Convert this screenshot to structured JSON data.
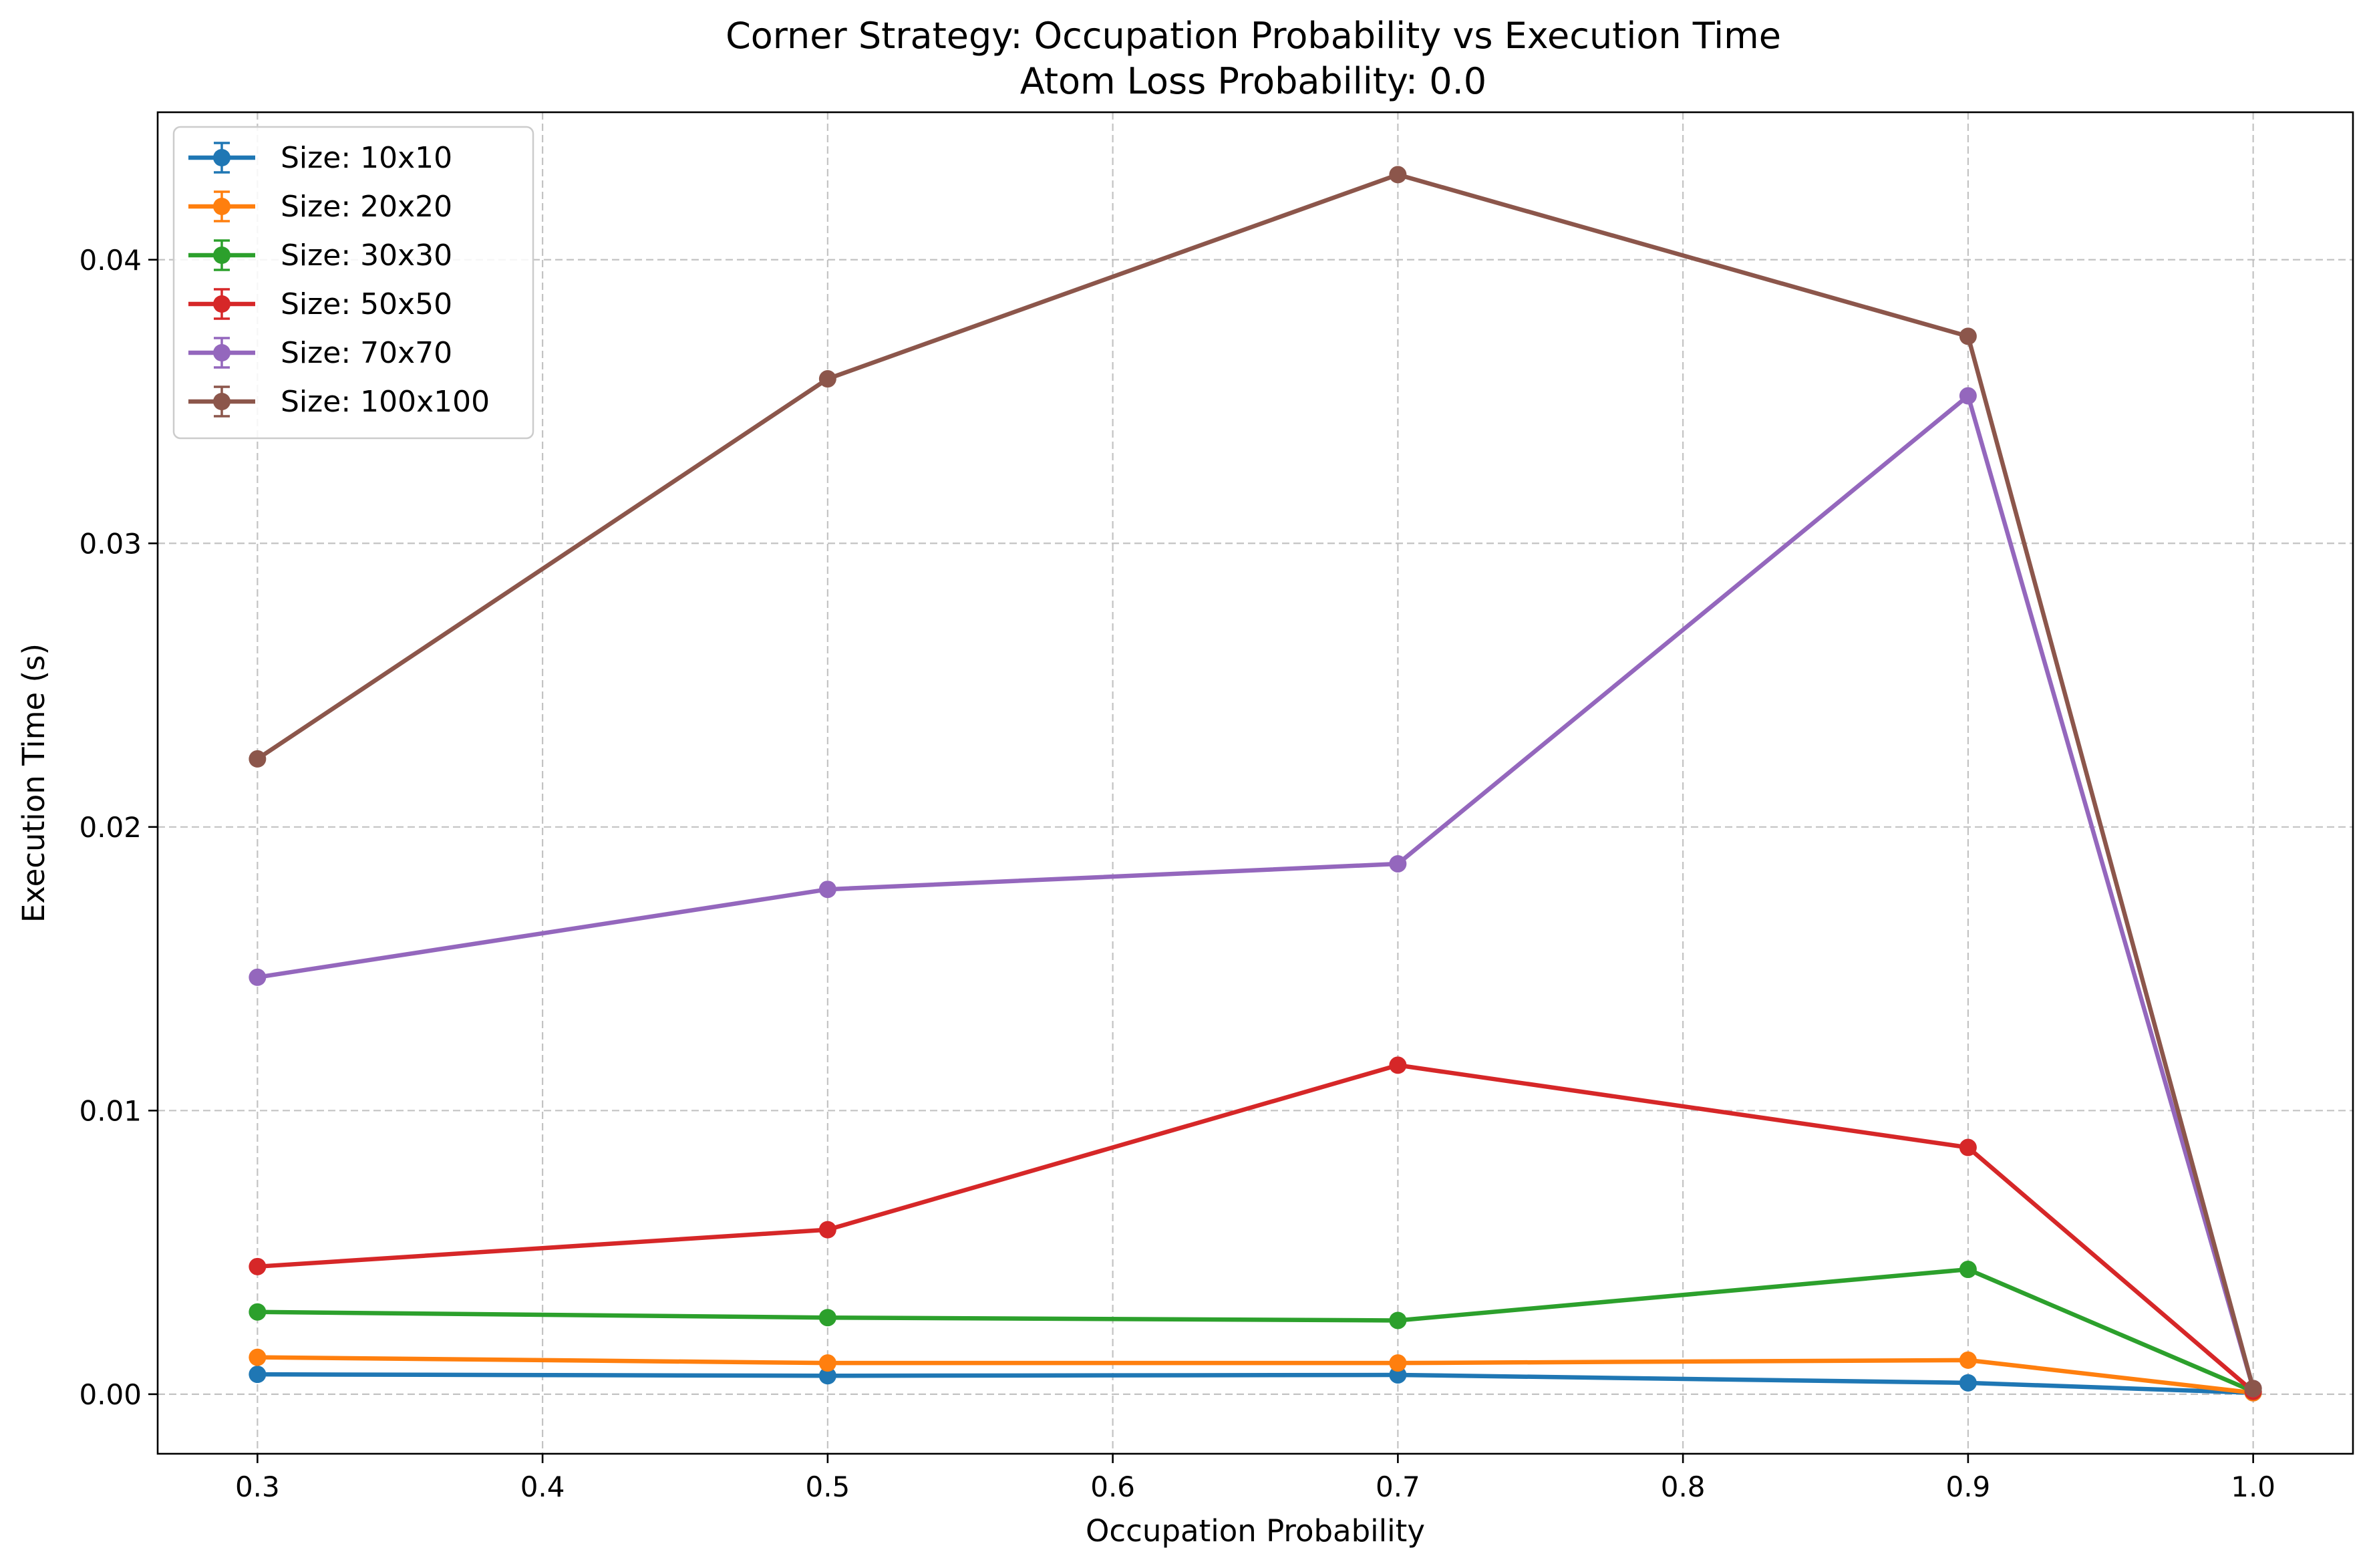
{
  "chart_data": {
    "type": "line",
    "title": "Corner Strategy: Occupation Probability vs Execution Time",
    "subtitle": "Atom Loss Probability: 0.0",
    "xlabel": "Occupation Probability",
    "ylabel": "Execution Time (s)",
    "xlim": [
      0.265,
      1.035
    ],
    "ylim": [
      -0.0021,
      0.0452
    ],
    "xticks": [
      0.3,
      0.4,
      0.5,
      0.6,
      0.7,
      0.8,
      0.9,
      1.0
    ],
    "xtick_labels": [
      "0.3",
      "0.4",
      "0.5",
      "0.6",
      "0.7",
      "0.8",
      "0.9",
      "1.0"
    ],
    "yticks": [
      0.0,
      0.01,
      0.02,
      0.03,
      0.04
    ],
    "ytick_labels": [
      "0.00",
      "0.01",
      "0.02",
      "0.03",
      "0.04"
    ],
    "grid": true,
    "legend_position": "top-left",
    "x": [
      0.3,
      0.5,
      0.7,
      0.9,
      1.0
    ],
    "series": [
      {
        "name": "Size: 10x10",
        "color": "#1f77b4",
        "values": [
          0.0007,
          0.00065,
          0.00068,
          0.0004,
          5e-05
        ]
      },
      {
        "name": "Size: 20x20",
        "color": "#ff7f0e",
        "values": [
          0.0013,
          0.0011,
          0.0011,
          0.0012,
          5e-05
        ]
      },
      {
        "name": "Size: 30x30",
        "color": "#2ca02c",
        "values": [
          0.0029,
          0.0027,
          0.0026,
          0.0044,
          0.0001
        ]
      },
      {
        "name": "Size: 50x50",
        "color": "#d62728",
        "values": [
          0.0045,
          0.0058,
          0.0116,
          0.0087,
          0.0001
        ]
      },
      {
        "name": "Size: 70x70",
        "color": "#9467bd",
        "values": [
          0.0147,
          0.0178,
          0.0187,
          0.0352,
          0.0002
        ]
      },
      {
        "name": "Size: 100x100",
        "color": "#8c564b",
        "values": [
          0.0224,
          0.0358,
          0.043,
          0.0373,
          0.0002
        ]
      }
    ]
  }
}
